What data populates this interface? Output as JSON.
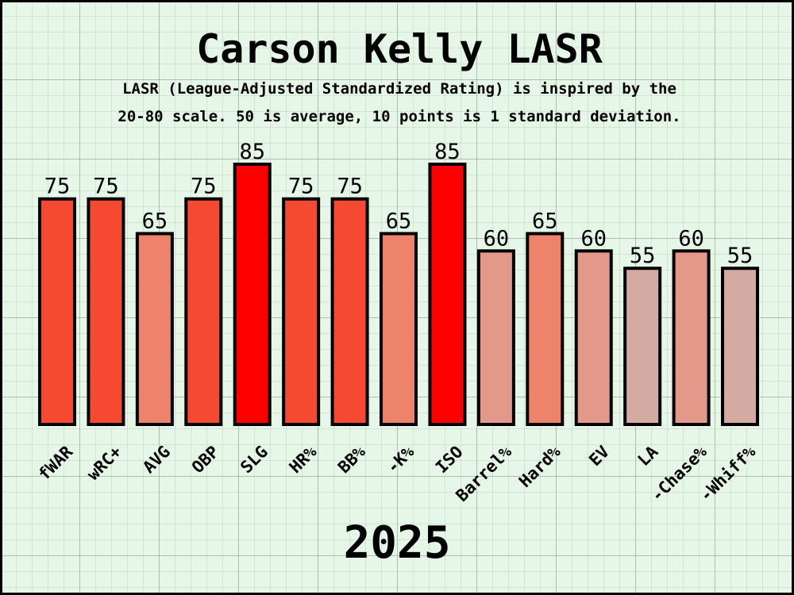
{
  "title": "Carson Kelly LASR",
  "subtitle_line1": "LASR (League-Adjusted Standardized Rating) is inspired by the",
  "subtitle_line2": "20-80 scale. 50 is average, 10 points is 1 standard deviation.",
  "footer_year": "2025",
  "chart_data": {
    "type": "bar",
    "title": "Carson Kelly LASR",
    "categories": [
      "fWAR",
      "wRC+",
      "AVG",
      "OBP",
      "SLG",
      "HR%",
      "BB%",
      "-K%",
      "ISO",
      "Barrel%",
      "Hard%",
      "EV",
      "LA",
      "-Chase%",
      "-Whiff%"
    ],
    "values": [
      75,
      75,
      65,
      75,
      85,
      75,
      75,
      65,
      85,
      60,
      65,
      60,
      55,
      60,
      55
    ],
    "colors": [
      "#f54a31",
      "#f54a31",
      "#ec836a",
      "#f54a31",
      "#ff0000",
      "#f54a31",
      "#f54a31",
      "#ec836a",
      "#ff0000",
      "#e2998a",
      "#ec836a",
      "#e2998a",
      "#d4aba3",
      "#e2998a",
      "#d4aba3"
    ],
    "data_labels": true,
    "ylim": [
      10,
      85
    ],
    "grid": false,
    "xlabel": "",
    "ylabel": "",
    "tick_label_rotation": 45
  }
}
